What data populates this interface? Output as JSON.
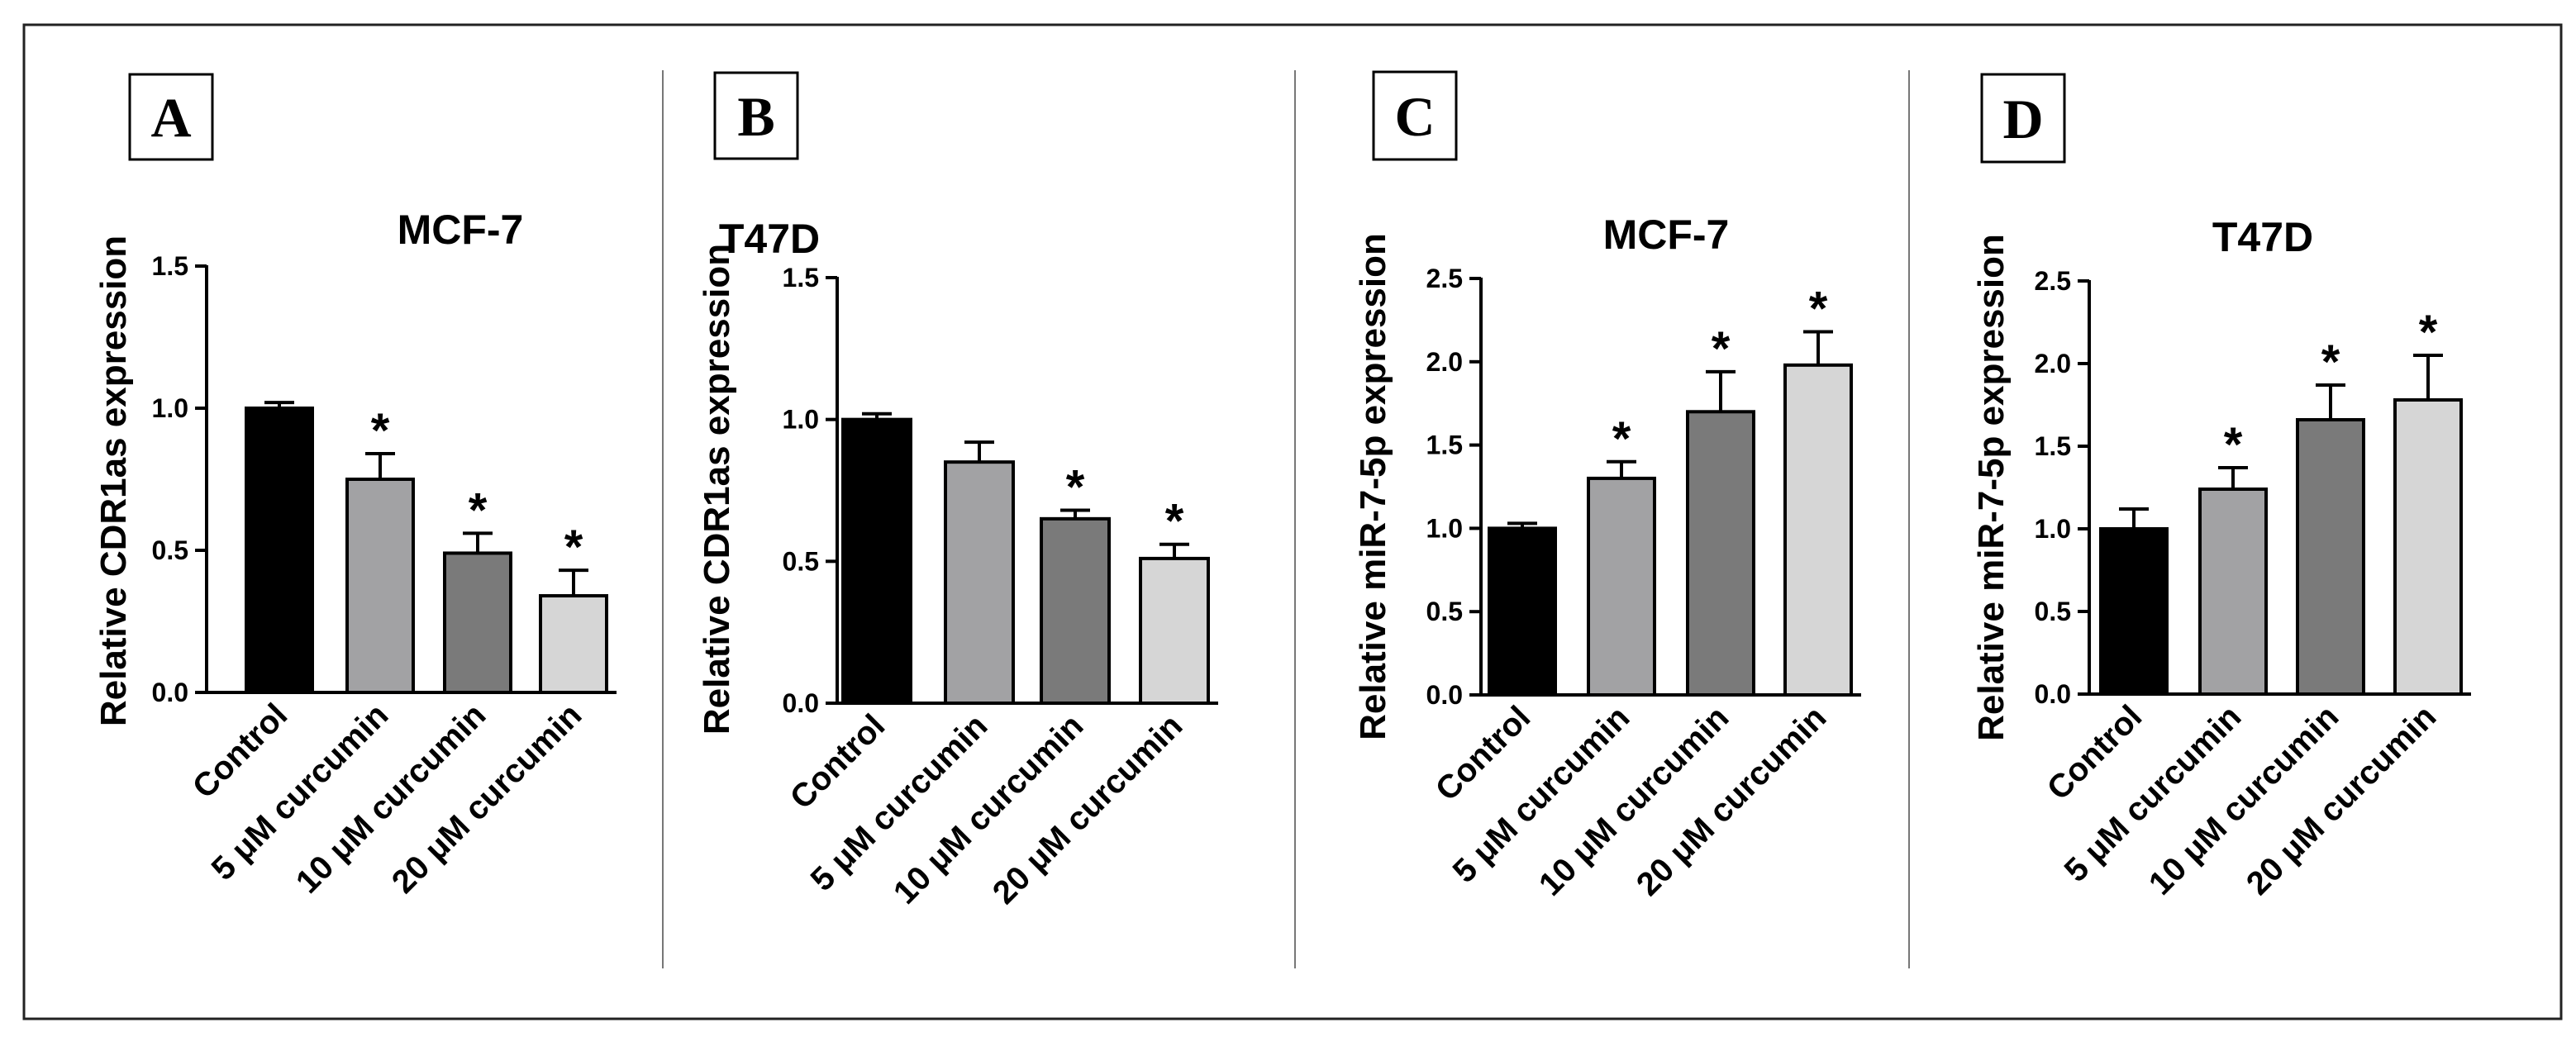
{
  "chart_data": [
    {
      "panel": "A",
      "type": "bar",
      "title": "MCF-7",
      "ylabel": "Relative CDR1as expression",
      "xlabel": "",
      "categories": [
        "Control",
        "5 μM curcumin",
        "10 μM curcumin",
        "20 μM curcumin"
      ],
      "values": [
        1.0,
        0.75,
        0.49,
        0.34
      ],
      "errors": [
        0.02,
        0.09,
        0.07,
        0.09
      ],
      "significant": [
        false,
        true,
        true,
        true
      ],
      "significance_marker": "*",
      "bar_colors": [
        "#000000",
        "#a2a2a4",
        "#7a7a7a",
        "#d6d6d6"
      ],
      "ylim": [
        0,
        1.5
      ],
      "yticks": [
        0.0,
        0.5,
        1.0,
        1.5
      ],
      "ytick_labels": [
        "0.0",
        "0.5",
        "1.0",
        "1.5"
      ]
    },
    {
      "panel": "B",
      "type": "bar",
      "title": "T47D",
      "ylabel": "Relative CDR1as expression",
      "xlabel": "",
      "categories": [
        "Control",
        "5 μM curcumin",
        "10 μM curcumin",
        "20 μM curcumin"
      ],
      "values": [
        1.0,
        0.85,
        0.65,
        0.51
      ],
      "errors": [
        0.02,
        0.07,
        0.03,
        0.05
      ],
      "significant": [
        false,
        false,
        true,
        true
      ],
      "significance_marker": "*",
      "bar_colors": [
        "#000000",
        "#a2a2a4",
        "#7a7a7a",
        "#d6d6d6"
      ],
      "ylim": [
        0,
        1.5
      ],
      "yticks": [
        0.0,
        0.5,
        1.0,
        1.5
      ],
      "ytick_labels": [
        "0.0",
        "0.5",
        "1.0",
        "1.5"
      ]
    },
    {
      "panel": "C",
      "type": "bar",
      "title": "MCF-7",
      "ylabel": "Relative miR-7-5p expression",
      "xlabel": "",
      "categories": [
        "Control",
        "5 μM curcumin",
        "10 μM curcumin",
        "20 μM curcumin"
      ],
      "values": [
        1.0,
        1.3,
        1.7,
        1.98
      ],
      "errors": [
        0.03,
        0.1,
        0.24,
        0.2
      ],
      "significant": [
        false,
        true,
        true,
        true
      ],
      "significance_marker": "*",
      "bar_colors": [
        "#000000",
        "#a2a2a4",
        "#7a7a7a",
        "#d6d6d6"
      ],
      "ylim": [
        0,
        2.5
      ],
      "yticks": [
        0.0,
        0.5,
        1.0,
        1.5,
        2.0,
        2.5
      ],
      "ytick_labels": [
        "0.0",
        "0.5",
        "1.0",
        "1.5",
        "2.0",
        "2.5"
      ]
    },
    {
      "panel": "D",
      "type": "bar",
      "title": "T47D",
      "ylabel": "Relative miR-7-5p expression",
      "xlabel": "",
      "categories": [
        "Control",
        "5 μM curcumin",
        "10 μM curcumin",
        "20 μM curcumin"
      ],
      "values": [
        1.0,
        1.24,
        1.66,
        1.78
      ],
      "errors": [
        0.12,
        0.13,
        0.21,
        0.27
      ],
      "significant": [
        false,
        true,
        true,
        true
      ],
      "significance_marker": "*",
      "bar_colors": [
        "#000000",
        "#a2a2a4",
        "#7a7a7a",
        "#d6d6d6"
      ],
      "ylim": [
        0,
        2.5
      ],
      "yticks": [
        0.0,
        0.5,
        1.0,
        1.5,
        2.0,
        2.5
      ],
      "ytick_labels": [
        "0.0",
        "0.5",
        "1.0",
        "1.5",
        "2.0",
        "2.5"
      ]
    }
  ]
}
